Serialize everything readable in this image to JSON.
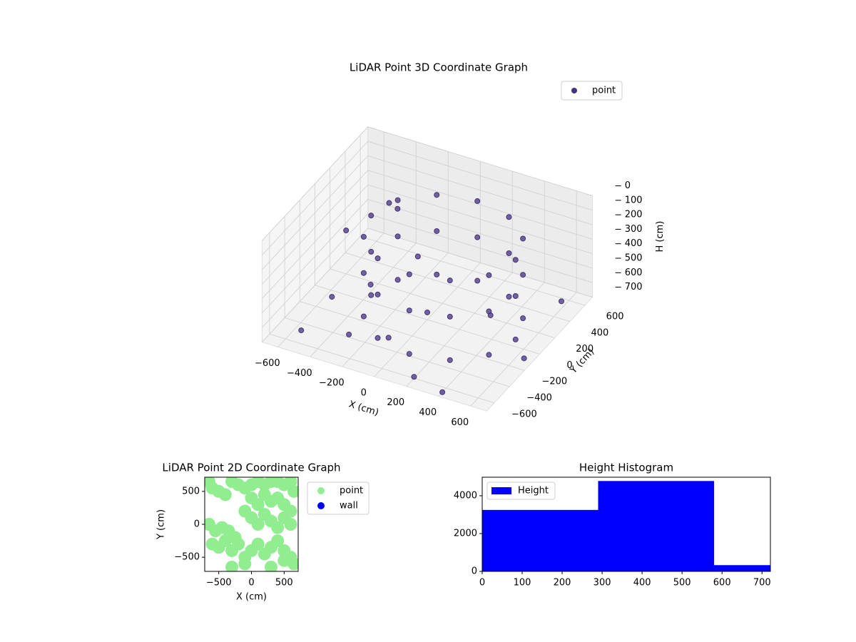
{
  "chart_data": [
    {
      "type": "scatter3d",
      "title": "LiDAR Point 3D Coordinate Graph",
      "xlabel": "X (cm)",
      "ylabel": "Y (cm)",
      "zlabel": "H (cm)",
      "xlim": [
        -700,
        700
      ],
      "ylim": [
        -700,
        700
      ],
      "zlim": [
        0,
        700
      ],
      "zinverted": true,
      "xticks": [
        {
          "value": -600,
          "label": "−600"
        },
        {
          "value": -400,
          "label": "−400"
        },
        {
          "value": -200,
          "label": "−200"
        },
        0,
        200,
        400,
        600
      ],
      "yticks": [
        {
          "value": -600,
          "label": "−600"
        },
        {
          "value": -400,
          "label": "−400"
        },
        {
          "value": -200,
          "label": "−200"
        },
        0,
        200,
        400,
        600
      ],
      "zticks": [
        0,
        100,
        200,
        300,
        400,
        500,
        600,
        700
      ],
      "grid": true,
      "legend": "upper right",
      "series": [
        {
          "name": "point",
          "color": "#46327e",
          "x": [
            550,
            550,
            550,
            490,
            490,
            490,
            325,
            325,
            325,
            100,
            100,
            100,
            -125,
            -125,
            -125,
            -290,
            -290,
            -290,
            -350,
            -350,
            -350,
            -290,
            -290,
            -290,
            -125,
            -125,
            -125,
            100,
            100,
            100,
            325,
            325,
            325,
            490,
            490,
            490,
            -500,
            -400,
            -300,
            -200,
            -600,
            -100,
            200,
            400,
            600,
            650,
            -450,
            -350,
            -550,
            0,
            300
          ],
          "y": [
            0,
            0,
            0,
            225,
            225,
            225,
            390,
            390,
            390,
            450,
            450,
            450,
            390,
            390,
            390,
            225,
            225,
            225,
            0,
            0,
            0,
            -225,
            -225,
            -225,
            -390,
            -390,
            -390,
            -450,
            -450,
            -450,
            -390,
            -390,
            -390,
            -225,
            -225,
            -225,
            -200,
            100,
            -400,
            300,
            200,
            -300,
            -600,
            -650,
            500,
            -100,
            450,
            350,
            -500,
            0,
            200
          ],
          "z": [
            100,
            350,
            650,
            100,
            350,
            650,
            100,
            350,
            650,
            100,
            350,
            650,
            100,
            350,
            650,
            100,
            350,
            650,
            100,
            350,
            650,
            100,
            350,
            650,
            100,
            350,
            650,
            100,
            350,
            650,
            100,
            350,
            650,
            100,
            350,
            650,
            600,
            650,
            680,
            500,
            400,
            690,
            690,
            700,
            650,
            690,
            300,
            250,
            680,
            650,
            680
          ]
        }
      ]
    },
    {
      "type": "scatter",
      "title": "LiDAR Point 2D Coordinate Graph",
      "xlabel": "X (cm)",
      "ylabel": "Y (cm)",
      "xlim": [
        -715,
        715
      ],
      "ylim": [
        -715,
        715
      ],
      "xticks": [
        {
          "value": -500,
          "label": "−500"
        },
        0,
        500
      ],
      "yticks": [
        {
          "value": -500,
          "label": "−500"
        },
        0,
        500
      ],
      "legend": "outside right",
      "series": [
        {
          "name": "point",
          "color": "#90ee90",
          "x": [
            -650,
            -600,
            -500,
            -400,
            -300,
            -200,
            -100,
            0,
            100,
            200,
            300,
            400,
            500,
            600,
            650,
            0,
            100,
            200,
            300,
            400,
            500,
            600,
            -100,
            0,
            100,
            200,
            300,
            400,
            500,
            600,
            -650,
            -550,
            -450,
            -350,
            -250,
            -600,
            -500,
            -400,
            -300,
            -200,
            -100,
            0,
            100,
            200,
            300,
            400,
            500,
            600,
            650,
            -300,
            -100,
            300,
            500
          ],
          "y": [
            650,
            550,
            500,
            450,
            650,
            600,
            550,
            600,
            650,
            600,
            650,
            650,
            600,
            650,
            500,
            400,
            300,
            450,
            350,
            400,
            300,
            200,
            200,
            100,
            0,
            150,
            50,
            -50,
            100,
            0,
            0,
            -100,
            -50,
            -100,
            -200,
            -300,
            -350,
            -250,
            -400,
            -300,
            -500,
            -400,
            -300,
            -450,
            -350,
            -250,
            -400,
            -500,
            -600,
            -650,
            -600,
            -650,
            -550
          ]
        },
        {
          "name": "wall",
          "color": "#0000ff",
          "x": [],
          "y": []
        }
      ]
    },
    {
      "type": "histogram",
      "title": "Height Histogram",
      "bins": [
        0,
        290,
        580,
        721
      ],
      "counts": [
        3250,
        4780,
        330
      ],
      "color": "#0000ff",
      "series_name": "Height",
      "legend": "upper left",
      "xlim": [
        0,
        721
      ],
      "ylim": [
        0,
        4980
      ],
      "xticks": [
        0,
        100,
        200,
        300,
        400,
        500,
        600,
        700
      ],
      "yticks": [
        0,
        2000,
        4000
      ]
    }
  ]
}
